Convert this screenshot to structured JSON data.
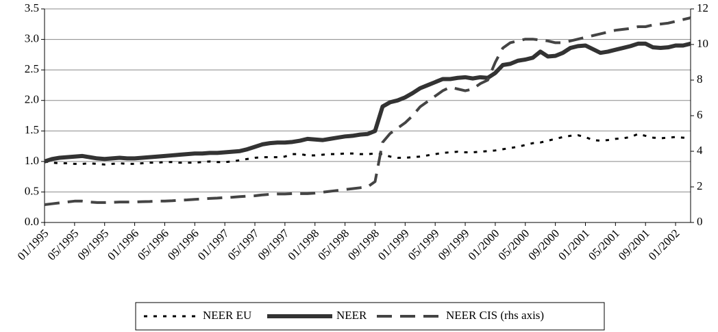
{
  "chart_data": {
    "type": "line",
    "categories": [
      "01/1995",
      null,
      null,
      null,
      "05/1995",
      null,
      null,
      null,
      "09/1995",
      null,
      null,
      null,
      "01/1996",
      null,
      null,
      null,
      "05/1996",
      null,
      null,
      null,
      "09/1996",
      null,
      null,
      null,
      "01/1997",
      null,
      null,
      null,
      "05/1997",
      null,
      null,
      null,
      "09/1997",
      null,
      null,
      null,
      "01/1998",
      null,
      null,
      null,
      "05/1998",
      null,
      null,
      null,
      "09/1998",
      null,
      null,
      null,
      "01/1999",
      null,
      null,
      null,
      "05/1999",
      null,
      null,
      null,
      "09/1999",
      null,
      null,
      null,
      "01/2000",
      null,
      null,
      null,
      "05/2000",
      null,
      null,
      null,
      "09/2000",
      null,
      null,
      null,
      "01/2001",
      null,
      null,
      null,
      "05/2001",
      null,
      null,
      null,
      "09/2001",
      null,
      null,
      null,
      "01/2002",
      null,
      null
    ],
    "series": [
      {
        "name": "NEER EU",
        "color": "#000000",
        "dash": "dotted",
        "values": [
          1.0,
          0.98,
          0.97,
          0.97,
          0.96,
          0.96,
          0.97,
          0.96,
          0.95,
          0.96,
          0.97,
          0.96,
          0.96,
          0.97,
          0.98,
          0.98,
          0.99,
          0.99,
          0.98,
          0.98,
          0.98,
          0.99,
          1.0,
          0.99,
          0.99,
          1.0,
          1.02,
          1.04,
          1.06,
          1.07,
          1.07,
          1.07,
          1.08,
          1.12,
          1.12,
          1.1,
          1.1,
          1.11,
          1.12,
          1.12,
          1.13,
          1.13,
          1.12,
          1.12,
          1.13,
          1.12,
          1.08,
          1.06,
          1.06,
          1.07,
          1.08,
          1.1,
          1.12,
          1.14,
          1.15,
          1.16,
          1.15,
          1.15,
          1.16,
          1.17,
          1.18,
          1.2,
          1.22,
          1.24,
          1.27,
          1.3,
          1.31,
          1.34,
          1.37,
          1.4,
          1.42,
          1.43,
          1.4,
          1.35,
          1.34,
          1.35,
          1.37,
          1.38,
          1.4,
          1.45,
          1.42,
          1.39,
          1.38,
          1.39,
          1.4,
          1.39,
          1.38
        ]
      },
      {
        "name": "NEER",
        "color": "#333333",
        "dash": "solid",
        "values": [
          1.0,
          1.04,
          1.06,
          1.07,
          1.08,
          1.09,
          1.07,
          1.05,
          1.04,
          1.05,
          1.06,
          1.05,
          1.05,
          1.06,
          1.07,
          1.08,
          1.09,
          1.1,
          1.11,
          1.12,
          1.13,
          1.13,
          1.14,
          1.14,
          1.15,
          1.16,
          1.17,
          1.2,
          1.24,
          1.28,
          1.3,
          1.31,
          1.31,
          1.32,
          1.34,
          1.37,
          1.36,
          1.35,
          1.37,
          1.39,
          1.41,
          1.42,
          1.44,
          1.45,
          1.5,
          1.9,
          1.97,
          2.0,
          2.05,
          2.12,
          2.2,
          2.25,
          2.3,
          2.35,
          2.35,
          2.37,
          2.38,
          2.36,
          2.38,
          2.37,
          2.45,
          2.58,
          2.6,
          2.65,
          2.67,
          2.7,
          2.8,
          2.72,
          2.73,
          2.78,
          2.86,
          2.89,
          2.9,
          2.84,
          2.78,
          2.8,
          2.83,
          2.86,
          2.89,
          2.93,
          2.93,
          2.87,
          2.86,
          2.87,
          2.9,
          2.9,
          2.93
        ]
      },
      {
        "name": "NEER CIS (rhs axis)",
        "color": "#444444",
        "dash": "dashed",
        "axis": "y2",
        "values": [
          1.0,
          1.05,
          1.1,
          1.15,
          1.2,
          1.2,
          1.15,
          1.12,
          1.12,
          1.13,
          1.15,
          1.15,
          1.15,
          1.17,
          1.18,
          1.2,
          1.2,
          1.22,
          1.25,
          1.27,
          1.3,
          1.32,
          1.35,
          1.37,
          1.4,
          1.42,
          1.45,
          1.48,
          1.5,
          1.55,
          1.58,
          1.6,
          1.6,
          1.62,
          1.62,
          1.62,
          1.65,
          1.7,
          1.75,
          1.8,
          1.85,
          1.9,
          1.95,
          2.0,
          2.3,
          4.5,
          5.0,
          5.3,
          5.6,
          6.0,
          6.5,
          6.8,
          7.1,
          7.4,
          7.6,
          7.5,
          7.4,
          7.5,
          7.8,
          8.0,
          9.0,
          9.8,
          10.1,
          10.2,
          10.3,
          10.3,
          10.25,
          10.2,
          10.1,
          10.1,
          10.2,
          10.3,
          10.4,
          10.5,
          10.6,
          10.7,
          10.8,
          10.85,
          10.9,
          11.0,
          11.0,
          11.1,
          11.15,
          11.2,
          11.3,
          11.4,
          11.5
        ]
      }
    ],
    "ylim": [
      0,
      3.5
    ],
    "yticks": [
      {
        "value": 0,
        "label": "0.0"
      },
      0.5,
      {
        "value": 1,
        "label": "1.0"
      },
      1.5,
      {
        "value": 2,
        "label": "2.0"
      },
      2.5,
      {
        "value": 3,
        "label": "3.0"
      },
      3.5
    ],
    "y2lim": [
      0,
      12
    ],
    "y2ticks": [
      0,
      2,
      4,
      6,
      8,
      10,
      12
    ],
    "grid": true,
    "legend": "bottom"
  }
}
